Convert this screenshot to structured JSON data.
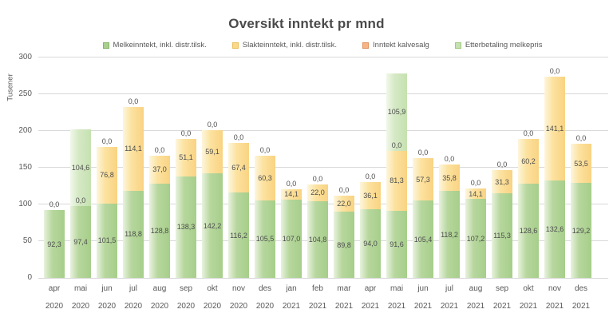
{
  "chart_data": {
    "type": "bar",
    "stacked": true,
    "title": "Oversikt inntekt pr mnd",
    "axis": {
      "ylabel": "Tusener",
      "ylim": [
        0,
        300
      ],
      "yticks": [
        0,
        50,
        100,
        150,
        200,
        250,
        300
      ],
      "grid": true
    },
    "legend_position": "top",
    "categories": [
      {
        "month": "apr",
        "year": "2020"
      },
      {
        "month": "mai",
        "year": "2020"
      },
      {
        "month": "jun",
        "year": "2020"
      },
      {
        "month": "jul",
        "year": "2020"
      },
      {
        "month": "aug",
        "year": "2020"
      },
      {
        "month": "sep",
        "year": "2020"
      },
      {
        "month": "okt",
        "year": "2020"
      },
      {
        "month": "nov",
        "year": "2020"
      },
      {
        "month": "des",
        "year": "2020"
      },
      {
        "month": "jan",
        "year": "2021"
      },
      {
        "month": "feb",
        "year": "2021"
      },
      {
        "month": "mar",
        "year": "2021"
      },
      {
        "month": "apr",
        "year": "2021"
      },
      {
        "month": "mai",
        "year": "2021"
      },
      {
        "month": "jun",
        "year": "2021"
      },
      {
        "month": "jul",
        "year": "2021"
      },
      {
        "month": "aug",
        "year": "2021"
      },
      {
        "month": "sep",
        "year": "2021"
      },
      {
        "month": "okt",
        "year": "2021"
      },
      {
        "month": "nov",
        "year": "2021"
      },
      {
        "month": "des",
        "year": "2021"
      }
    ],
    "series": [
      {
        "key": "melk",
        "name": "Melkeinntekt, inkl. distr.tilsk.",
        "color": "#a9d08e",
        "swatch_border": "#85b565",
        "values": [
          92.3,
          97.4,
          101.5,
          118.8,
          128.8,
          138.3,
          142.2,
          116.2,
          105.5,
          107.0,
          104.8,
          89.8,
          94.0,
          91.6,
          105.4,
          118.2,
          107.2,
          115.3,
          128.6,
          132.6,
          129.2
        ],
        "labels": [
          "92,3",
          "97,4",
          "101,5",
          "118,8",
          "128,8",
          "138,3",
          "142,2",
          "116,2",
          "105,5",
          "107,0",
          "104,8",
          "89,8",
          "94,0",
          "91,6",
          "105,4",
          "118,2",
          "107,2",
          "115,3",
          "128,6",
          "132,6",
          "129,2"
        ]
      },
      {
        "key": "slakt",
        "name": "Slakteinntekt, inkl. distr.tilsk.",
        "color": "#fbd988",
        "swatch_border": "#e8bf5e",
        "values": [
          0,
          0,
          76.8,
          114.1,
          37.0,
          51.1,
          59.1,
          67.4,
          60.3,
          14.1,
          22.0,
          22.0,
          36.1,
          81.3,
          57.3,
          35.8,
          14.1,
          31.3,
          60.2,
          141.1,
          53.5
        ],
        "labels": [
          "0,0",
          "0,0",
          "76,8",
          "114,1",
          "37,0",
          "51,1",
          "59,1",
          "67,4",
          "60,3",
          "14,1",
          "22,0",
          "22,0",
          "36,1",
          "81,3",
          "57,3",
          "35,8",
          "14,1",
          "31,3",
          "60,2",
          "141,1",
          "53,5"
        ]
      },
      {
        "key": "kalv",
        "name": "Inntekt kalvesalg",
        "color": "#f5b585",
        "swatch_border": "#e0925f",
        "values": [
          0,
          0,
          0,
          0,
          0,
          0,
          0,
          0,
          0,
          0,
          0,
          0,
          0,
          0,
          0,
          0,
          0,
          0,
          0,
          0,
          0
        ],
        "labels": [
          "0,0",
          "0,0",
          "0,0",
          "0,0",
          "0,0",
          "0,0",
          "0,0",
          "0,0",
          "0,0",
          "0,0",
          "0,0",
          "0,0",
          "0,0",
          "0,0",
          "0,0",
          "0,0",
          "0,0",
          "0,0",
          "0,0",
          "0,0",
          "0,0"
        ]
      },
      {
        "key": "etter",
        "name": "Etterbetaling melkepris",
        "color": "#c6e1b0",
        "swatch_border": "#9ccb7c",
        "values": [
          0,
          104.6,
          0,
          0,
          0,
          0,
          0,
          0,
          0,
          0,
          0,
          0,
          0,
          105.9,
          0,
          0,
          0,
          0,
          0,
          0,
          0
        ],
        "labels": [
          "0,0",
          "104,6",
          "0,0",
          "0,0",
          "0,0",
          "0,0",
          "0,0",
          "0,0",
          "0,0",
          "0,0",
          "0,0",
          "0,0",
          "0,0",
          "105,9",
          "0,0",
          "0,0",
          "0,0",
          "0,0",
          "0,0",
          "0,0",
          "0,0"
        ]
      }
    ]
  }
}
